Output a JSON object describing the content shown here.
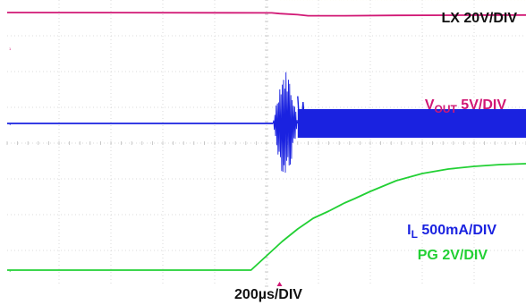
{
  "chart_data": {
    "type": "line",
    "title": "",
    "xlabel": "200µs/DIV",
    "x_unit": "µs",
    "xlim": [
      0,
      2000
    ],
    "grid": true,
    "grid_divisions": {
      "x": 10,
      "y": 8
    },
    "series": [
      {
        "name": "LX 20V/DIV",
        "label": {
          "main": "LX 20V/DIV",
          "sub": "",
          "tail": ""
        },
        "color": "#a7a31b",
        "unit": "V",
        "style": "switching",
        "baseline_div": 4.05,
        "scale_v_per_div": 20,
        "switch_start_us": 1055,
        "high_level_v": 48,
        "x": [
          0,
          1055,
          1055,
          2000
        ],
        "y": [
          0,
          0,
          48,
          48
        ]
      },
      {
        "name": "VOUT 5V/DIV",
        "label": {
          "main": "V",
          "sub": "OUT",
          "tail": " 5V/DIV"
        },
        "color": "#d11875",
        "unit": "V",
        "style": "line",
        "baseline_div": 2.65,
        "scale_v_per_div": 5,
        "x": [
          0,
          1020,
          1050,
          1120,
          1160,
          1300,
          1500,
          2000
        ],
        "y": [
          5,
          4.95,
          4.85,
          4.7,
          4.55,
          4.55,
          4.6,
          4.65
        ]
      },
      {
        "name": "IL 500mA/DIV",
        "label": {
          "main": "I",
          "sub": "L",
          "tail": " 500mA/DIV"
        },
        "color": "#1a22e0",
        "unit": "mA",
        "style": "ringing",
        "baseline_div": 0.55,
        "scale_v_per_div": 500,
        "ring_start_us": 1025,
        "ring_end_us": 1120,
        "ring_amplitude_ma": 750,
        "steady_start_us": 1120,
        "steady_ripple_ma": 200,
        "x": [
          0,
          2000
        ],
        "y": [
          0,
          0
        ]
      },
      {
        "name": "PG 2V/DIV",
        "label": {
          "main": "PG 2V/DIV",
          "sub": "",
          "tail": ""
        },
        "color": "#22d034",
        "unit": "V",
        "style": "line",
        "baseline_div": -3.55,
        "scale_v_per_div": 2,
        "x": [
          0,
          940,
          1000,
          1060,
          1120,
          1180,
          1240,
          1300,
          1340,
          1400,
          1500,
          1600,
          1700,
          1800,
          1900,
          2000
        ],
        "y": [
          0,
          0,
          0.8,
          1.6,
          2.3,
          2.9,
          3.3,
          3.75,
          4.0,
          4.4,
          5.0,
          5.4,
          5.65,
          5.8,
          5.9,
          5.95
        ]
      }
    ]
  }
}
